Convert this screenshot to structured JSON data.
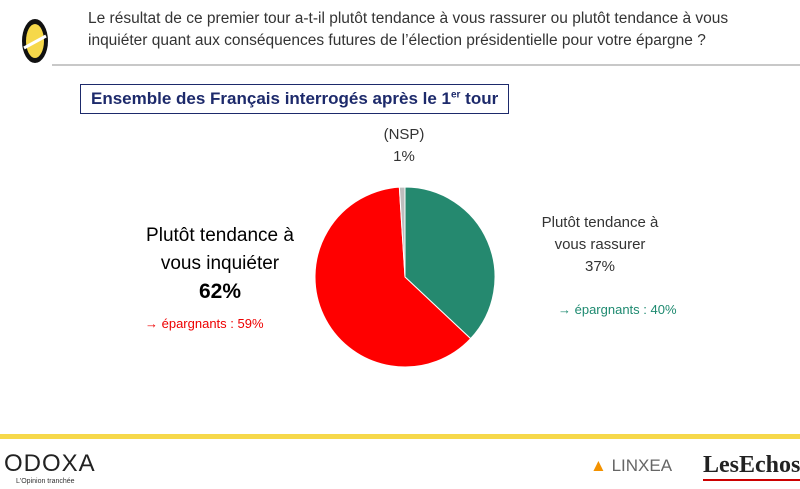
{
  "header": {
    "question": "Le résultat de ce premier tour a-t-il plutôt tendance à vous rassurer ou plutôt tendance à vous inquiéter quant aux conséquences futures de l’élection présidentielle pour votre épargne ?"
  },
  "subtitle": {
    "main": "Ensemble des Français interrogés après le 1",
    "sup": "er",
    "end": " tour"
  },
  "chart_data": {
    "type": "pie",
    "slices": [
      {
        "label": "Plutôt  tendance à vous rassurer",
        "value": 37,
        "display": "37%",
        "color": "#25896f",
        "note": "→ épargnants : 40%"
      },
      {
        "label": "Plutôt tendance à vous inquiéter",
        "value": 62,
        "display": "62%",
        "color": "#ff0000",
        "note": "→ épargnants : 59%"
      },
      {
        "label": "(NSP)",
        "value": 1,
        "display": "1%",
        "color": "#bdbdbd"
      }
    ]
  },
  "footer": {
    "brand": "ODOXA",
    "tagline": "L'Opinion tranchée",
    "partner1": "LINXEA",
    "partner2": "LesEchos"
  }
}
